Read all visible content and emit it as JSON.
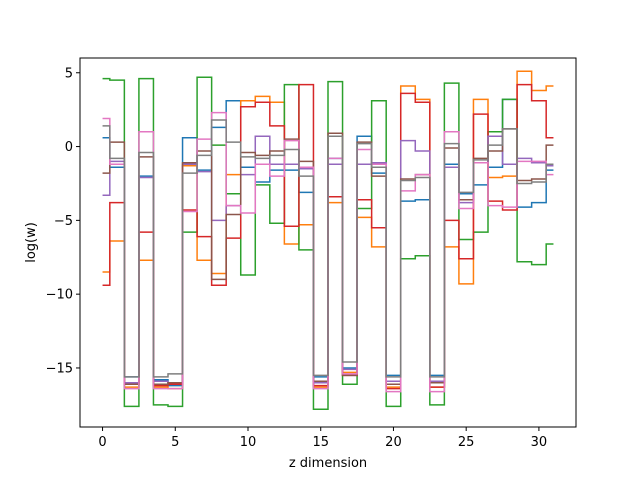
{
  "chart_data": {
    "type": "line",
    "style": "step",
    "xlabel": "z dimension",
    "ylabel": "log(w)",
    "xlim": [
      -1.55,
      32.55
    ],
    "ylim": [
      -19.0,
      6.0
    ],
    "xticks": [
      0,
      5,
      10,
      15,
      20,
      25,
      30
    ],
    "yticks": [
      5,
      0,
      -5,
      -10,
      -15
    ],
    "xtick_labels": [
      "0",
      "5",
      "10",
      "15",
      "20",
      "25",
      "30"
    ],
    "ytick_labels": [
      "5",
      "0",
      "−5",
      "−10",
      "−15"
    ],
    "grid": false,
    "legend": "none",
    "x": [
      0,
      1,
      2,
      3,
      4,
      5,
      6,
      7,
      8,
      9,
      10,
      11,
      12,
      13,
      14,
      15,
      16,
      17,
      18,
      19,
      20,
      21,
      22,
      23,
      24,
      25,
      26,
      27,
      28,
      29,
      30,
      31
    ],
    "series": [
      {
        "color": "#1f77b4",
        "values": [
          0.6,
          -1.4,
          -15.6,
          -2.0,
          -15.8,
          -16.2,
          0.6,
          -1.6,
          1.3,
          3.1,
          -1.4,
          -2.4,
          -1.6,
          -1.6,
          -3.1,
          -15.6,
          -0.8,
          -15.0,
          0.7,
          -1.8,
          -15.5,
          -3.7,
          -3.6,
          -15.5,
          -1.2,
          -3.2,
          -2.6,
          -1.4,
          3.2,
          -4.1,
          -3.8,
          -1.6
        ]
      },
      {
        "color": "#ff7f0e",
        "values": [
          -8.5,
          -6.4,
          -16.3,
          -7.7,
          -16.3,
          -16.4,
          -1.3,
          -7.7,
          -8.6,
          -1.9,
          3.1,
          3.4,
          3.0,
          -6.6,
          -5.3,
          -16.3,
          -3.8,
          -15.3,
          -4.8,
          -6.8,
          -16.3,
          4.1,
          3.2,
          -16.3,
          -6.8,
          -9.3,
          3.2,
          -2.1,
          -2.0,
          5.1,
          3.8,
          4.1
        ]
      },
      {
        "color": "#2ca02c",
        "values": [
          4.6,
          4.5,
          -17.6,
          4.6,
          -17.5,
          -17.6,
          -5.8,
          4.7,
          0.1,
          -3.2,
          -8.7,
          -2.6,
          -5.2,
          4.2,
          -7.0,
          -17.8,
          4.4,
          -16.1,
          -4.2,
          3.1,
          -17.6,
          -7.6,
          -7.4,
          -17.5,
          4.3,
          -6.3,
          -5.8,
          1.0,
          3.2,
          -7.8,
          -8.0,
          -6.6
        ]
      },
      {
        "color": "#d62728",
        "values": [
          -9.4,
          -3.8,
          -16.1,
          -5.8,
          -16.2,
          -16.1,
          -4.3,
          -6.1,
          -9.4,
          -6.2,
          2.7,
          3.0,
          1.4,
          -5.4,
          4.2,
          -16.2,
          -3.4,
          -15.5,
          -3.6,
          -5.5,
          -16.4,
          3.6,
          3.0,
          -16.3,
          -5.0,
          -7.6,
          2.2,
          -3.7,
          -4.3,
          4.2,
          3.1,
          0.6
        ]
      },
      {
        "color": "#9467bd",
        "values": [
          -3.3,
          -1.0,
          -16.0,
          -2.1,
          -15.9,
          -16.0,
          -1.2,
          -1.7,
          -5.0,
          -4.0,
          -1.9,
          0.7,
          -1.2,
          -1.2,
          -1.5,
          -16.0,
          -1.2,
          -15.1,
          -1.2,
          -1.1,
          -15.9,
          0.4,
          -0.3,
          -15.9,
          -1.4,
          -3.8,
          -1.1,
          0.7,
          -1.2,
          -0.8,
          -1.1,
          -1.3
        ]
      },
      {
        "color": "#8c564b",
        "values": [
          -1.8,
          0.3,
          -16.1,
          -0.7,
          -16.1,
          -16.0,
          -1.1,
          -0.3,
          -9.0,
          -4.6,
          -0.4,
          -0.6,
          -0.3,
          0.5,
          -1.0,
          -15.9,
          0.9,
          -15.5,
          0.3,
          -2.0,
          -16.1,
          -2.2,
          -1.9,
          -16.0,
          -0.1,
          -3.6,
          -0.8,
          -0.3,
          1.2,
          -2.3,
          -2.2,
          0.1
        ]
      },
      {
        "color": "#e377c2",
        "values": [
          1.9,
          -1.2,
          -16.4,
          1.0,
          -16.4,
          -16.4,
          -4.4,
          0.5,
          2.3,
          -4.0,
          -4.5,
          -1.2,
          -2.0,
          0.4,
          -1.4,
          -16.4,
          -0.8,
          -15.4,
          -0.2,
          -1.2,
          -16.6,
          -3.0,
          -1.9,
          -16.6,
          1.0,
          -4.2,
          -1.1,
          -4.0,
          -4.1,
          -1.0,
          -1.0,
          -1.9
        ]
      },
      {
        "color": "#7f7f7f",
        "values": [
          1.4,
          -0.8,
          -15.6,
          -0.4,
          -15.6,
          -15.4,
          -1.8,
          -0.6,
          1.8,
          0.3,
          -0.7,
          -0.8,
          -0.6,
          -0.2,
          -2.0,
          -15.5,
          0.7,
          -14.6,
          0.2,
          -1.4,
          -15.6,
          -2.3,
          -2.1,
          -15.6,
          0.2,
          -3.1,
          -0.9,
          0.1,
          1.2,
          -2.5,
          -2.4,
          -1.2
        ]
      }
    ]
  }
}
